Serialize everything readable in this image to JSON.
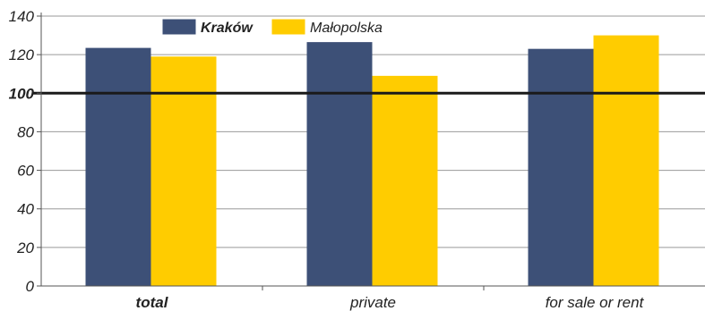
{
  "chart_data": {
    "type": "bar",
    "categories": [
      "total",
      "private",
      "for sale or rent"
    ],
    "emphasized_category": "total",
    "series": [
      {
        "name": "Kraków",
        "values": [
          123.5,
          126.5,
          123
        ],
        "color": "#3d5077",
        "bold_label": true
      },
      {
        "name": "Małopolska",
        "values": [
          119,
          109,
          130
        ],
        "color": "#ffcc00",
        "bold_label": false
      }
    ],
    "ylim": [
      0,
      140
    ],
    "yticks": [
      0,
      20,
      40,
      60,
      80,
      100,
      120,
      140
    ],
    "reference_line": 100,
    "grid": true,
    "legend_position": "top-center",
    "title": "",
    "xlabel": "",
    "ylabel": ""
  }
}
